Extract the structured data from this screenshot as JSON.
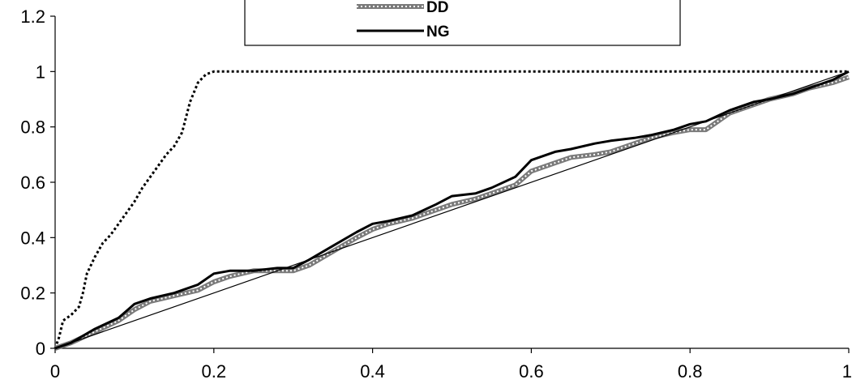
{
  "chart_data": {
    "type": "line",
    "title": "",
    "xlabel": "",
    "ylabel": "",
    "xlim": [
      0,
      1
    ],
    "ylim": [
      0,
      1.2
    ],
    "x_ticks": [
      {
        "value": 0,
        "label": "0"
      },
      {
        "value": 0.2,
        "label": "0.2"
      },
      {
        "value": 0.4,
        "label": "0.4"
      },
      {
        "value": 0.6,
        "label": "0.6"
      },
      {
        "value": 0.8,
        "label": "0.8"
      },
      {
        "value": 1,
        "label": "1"
      }
    ],
    "y_ticks": [
      {
        "value": 0,
        "label": "0"
      },
      {
        "value": 0.2,
        "label": "0.2"
      },
      {
        "value": 0.4,
        "label": "0.4"
      },
      {
        "value": 0.6,
        "label": "0.6"
      },
      {
        "value": 0.8,
        "label": "0.8"
      },
      {
        "value": 1,
        "label": "1"
      },
      {
        "value": 1.2,
        "label": "1.2"
      }
    ],
    "grid": false,
    "legend_position": "top-center",
    "series": [
      {
        "name": "",
        "style": "dotted",
        "color": "#000000",
        "in_legend": false,
        "x": [
          0,
          0.005,
          0.01,
          0.02,
          0.03,
          0.035,
          0.04,
          0.05,
          0.06,
          0.07,
          0.08,
          0.09,
          0.1,
          0.11,
          0.12,
          0.13,
          0.14,
          0.15,
          0.16,
          0.17,
          0.18,
          0.19,
          0.2,
          0.21,
          1.0
        ],
        "y": [
          0,
          0.04,
          0.1,
          0.12,
          0.15,
          0.2,
          0.27,
          0.33,
          0.38,
          0.41,
          0.45,
          0.49,
          0.53,
          0.58,
          0.62,
          0.66,
          0.7,
          0.73,
          0.78,
          0.89,
          0.96,
          0.99,
          1.0,
          1.0,
          1.0
        ]
      },
      {
        "name": "DD",
        "style": "circles",
        "color": "#888888",
        "in_legend": true,
        "x": [
          0,
          0.02,
          0.05,
          0.08,
          0.1,
          0.12,
          0.15,
          0.18,
          0.2,
          0.22,
          0.25,
          0.28,
          0.3,
          0.32,
          0.35,
          0.38,
          0.4,
          0.42,
          0.45,
          0.48,
          0.5,
          0.53,
          0.55,
          0.58,
          0.6,
          0.63,
          0.65,
          0.68,
          0.7,
          0.73,
          0.75,
          0.78,
          0.8,
          0.82,
          0.85,
          0.88,
          0.9,
          0.93,
          0.95,
          0.98,
          1.0
        ],
        "y": [
          0,
          0.02,
          0.06,
          0.1,
          0.14,
          0.17,
          0.19,
          0.21,
          0.24,
          0.26,
          0.28,
          0.28,
          0.28,
          0.3,
          0.35,
          0.4,
          0.43,
          0.45,
          0.47,
          0.5,
          0.52,
          0.54,
          0.56,
          0.59,
          0.64,
          0.67,
          0.69,
          0.7,
          0.71,
          0.74,
          0.76,
          0.78,
          0.79,
          0.79,
          0.85,
          0.88,
          0.9,
          0.92,
          0.94,
          0.96,
          0.98
        ]
      },
      {
        "name": "NG",
        "style": "solid-thick",
        "color": "#000000",
        "in_legend": true,
        "x": [
          0,
          0.02,
          0.05,
          0.08,
          0.1,
          0.12,
          0.15,
          0.18,
          0.2,
          0.22,
          0.25,
          0.28,
          0.3,
          0.32,
          0.35,
          0.38,
          0.4,
          0.42,
          0.45,
          0.48,
          0.5,
          0.53,
          0.55,
          0.58,
          0.6,
          0.63,
          0.65,
          0.68,
          0.7,
          0.73,
          0.75,
          0.78,
          0.8,
          0.82,
          0.85,
          0.88,
          0.9,
          0.93,
          0.95,
          0.98,
          1.0
        ],
        "y": [
          0,
          0.02,
          0.07,
          0.11,
          0.16,
          0.18,
          0.2,
          0.23,
          0.27,
          0.28,
          0.28,
          0.29,
          0.29,
          0.32,
          0.37,
          0.42,
          0.45,
          0.46,
          0.48,
          0.52,
          0.55,
          0.56,
          0.58,
          0.62,
          0.68,
          0.71,
          0.72,
          0.74,
          0.75,
          0.76,
          0.77,
          0.79,
          0.81,
          0.82,
          0.86,
          0.89,
          0.9,
          0.92,
          0.94,
          0.97,
          1.0
        ]
      },
      {
        "name": "",
        "style": "solid-thin",
        "color": "#000000",
        "in_legend": false,
        "x": [
          0,
          1
        ],
        "y": [
          0,
          1
        ]
      }
    ]
  }
}
